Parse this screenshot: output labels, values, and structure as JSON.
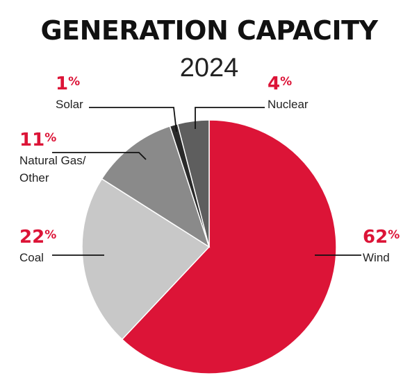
{
  "chart_data": {
    "type": "pie",
    "title": "GENERATION CAPACITY",
    "subtitle": "2024",
    "series": [
      {
        "name": "Wind",
        "value": 62,
        "value_label": "62%",
        "color": "#dc1437"
      },
      {
        "name": "Coal",
        "value": 22,
        "value_label": "22%",
        "color": "#c8c8c8"
      },
      {
        "name": "Natural Gas/ Other",
        "value": 11,
        "value_label": "11%",
        "color": "#8a8a8a"
      },
      {
        "name": "Solar",
        "value": 1,
        "value_label": "1%",
        "color": "#2a2a2a"
      },
      {
        "name": "Nuclear",
        "value": 4,
        "value_label": "4%",
        "color": "#5e5e5e"
      }
    ],
    "label_style": "leader-lines",
    "accent_color": "#dc1437",
    "legend": "none"
  }
}
